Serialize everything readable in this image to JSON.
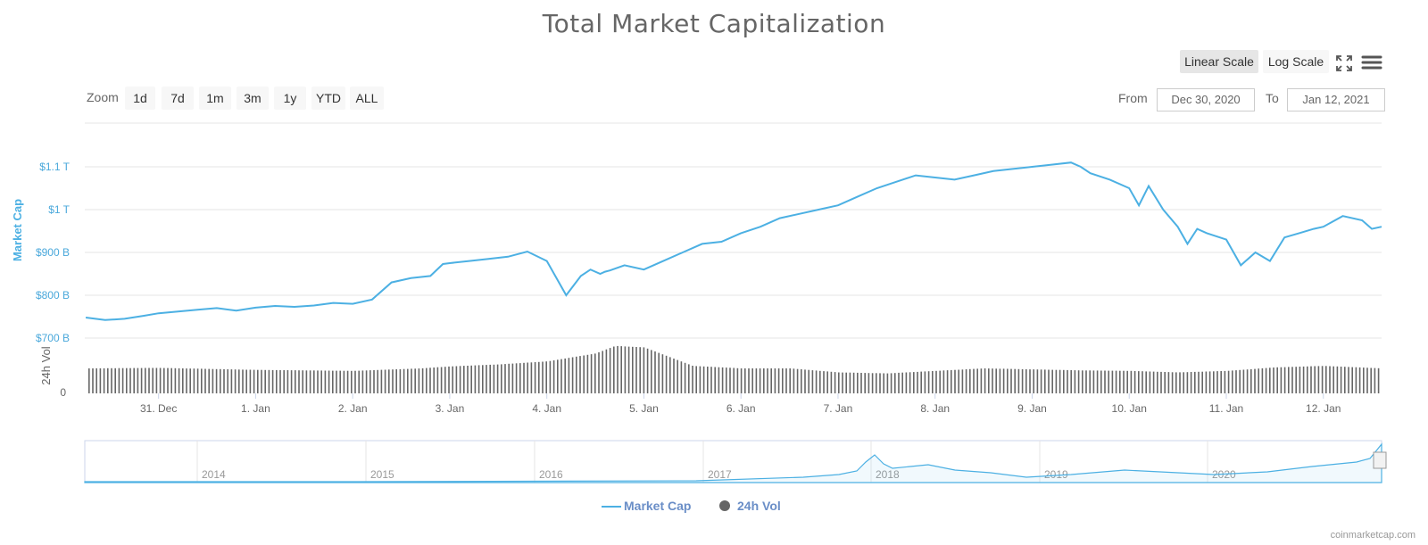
{
  "title": "Total Market Capitalization",
  "scale_buttons": {
    "linear": "Linear Scale",
    "log": "Log Scale",
    "active": "linear"
  },
  "icons": {
    "fullscreen": "fullscreen-icon",
    "menu": "hamburger-menu-icon"
  },
  "zoom": {
    "label": "Zoom",
    "buttons": [
      "1d",
      "7d",
      "1m",
      "3m",
      "1y",
      "YTD",
      "ALL"
    ]
  },
  "range": {
    "from_label": "From",
    "from_value": "Dec 30, 2020",
    "to_label": "To",
    "to_value": "Jan 12, 2021"
  },
  "legend": {
    "market_cap": "Market Cap",
    "volume": "24h Vol"
  },
  "credit": "coinmarketcap.com",
  "colors": {
    "line": "#4cb0e3",
    "volume": "#666666",
    "grid": "#e6e6e6",
    "axis_text": "#4aa8db"
  },
  "chart_data": {
    "type": "line",
    "title": "Total Market Capitalization",
    "ylabel": "Market Cap",
    "y_unit": "USD billions",
    "ylim": [
      700,
      1120
    ],
    "y_ticks": [
      "$700 B",
      "$800 B",
      "$900 B",
      "$1 T",
      "$1.1 T"
    ],
    "x_ticks": [
      "31. Dec",
      "1. Jan",
      "2. Jan",
      "3. Jan",
      "4. Jan",
      "5. Jan",
      "6. Jan",
      "7. Jan",
      "8. Jan",
      "9. Jan",
      "10. Jan",
      "11. Jan",
      "12. Jan"
    ],
    "xlim_days_from_dec30": [
      0.24,
      13.6
    ],
    "series": [
      {
        "name": "Market Cap",
        "x_days_from_dec30": [
          0.25,
          0.45,
          0.65,
          0.85,
          1.0,
          1.2,
          1.4,
          1.6,
          1.8,
          2.0,
          2.2,
          2.4,
          2.6,
          2.8,
          3.0,
          3.2,
          3.4,
          3.6,
          3.8,
          3.93,
          4.0,
          4.2,
          4.4,
          4.6,
          4.8,
          5.0,
          5.2,
          5.35,
          5.45,
          5.55,
          5.6,
          5.65,
          5.8,
          6.0,
          6.2,
          6.4,
          6.6,
          6.8,
          7.0,
          7.2,
          7.4,
          7.6,
          7.8,
          8.0,
          8.2,
          8.4,
          8.6,
          8.8,
          9.0,
          9.2,
          9.4,
          9.6,
          9.8,
          10.0,
          10.2,
          10.4,
          10.5,
          10.6,
          10.8,
          11.0,
          11.1,
          11.2,
          11.35,
          11.5,
          11.6,
          11.7,
          11.8,
          12.0,
          12.15,
          12.3,
          12.45,
          12.6,
          12.75,
          12.9,
          13.0,
          13.2,
          13.4,
          13.5,
          13.6
        ],
        "values": [
          748,
          742,
          745,
          752,
          758,
          762,
          766,
          770,
          764,
          771,
          775,
          773,
          776,
          782,
          780,
          790,
          830,
          840,
          845,
          873,
          875,
          880,
          885,
          890,
          902,
          880,
          800,
          845,
          860,
          850,
          855,
          858,
          870,
          860,
          880,
          900,
          920,
          925,
          945,
          960,
          980,
          990,
          1000,
          1010,
          1030,
          1050,
          1065,
          1080,
          1075,
          1070,
          1080,
          1090,
          1095,
          1100,
          1105,
          1110,
          1100,
          1085,
          1070,
          1050,
          1010,
          1055,
          1000,
          960,
          920,
          955,
          945,
          930,
          870,
          900,
          880,
          935,
          945,
          955,
          960,
          985,
          975,
          955,
          960
        ]
      },
      {
        "name": "24h Vol",
        "type": "column",
        "unit": "USD billions",
        "ylim_axis_label": "0",
        "x_days_from_dec30": [
          0.25,
          1.0,
          2.0,
          3.0,
          3.7,
          4.0,
          4.5,
          5.0,
          5.5,
          5.7,
          6.0,
          6.5,
          7.0,
          7.5,
          8.0,
          8.5,
          9.0,
          9.5,
          10.0,
          10.5,
          11.0,
          11.5,
          12.0,
          12.5,
          13.0,
          13.6
        ],
        "values": [
          50,
          51,
          47,
          45,
          50,
          54,
          58,
          64,
          80,
          95,
          92,
          55,
          50,
          50,
          42,
          40,
          45,
          50,
          48,
          46,
          45,
          42,
          45,
          52,
          55,
          50
        ]
      }
    ]
  },
  "navigator": {
    "year_labels": [
      "2014",
      "2015",
      "2016",
      "2017",
      "2018",
      "2019",
      "2020"
    ]
  }
}
